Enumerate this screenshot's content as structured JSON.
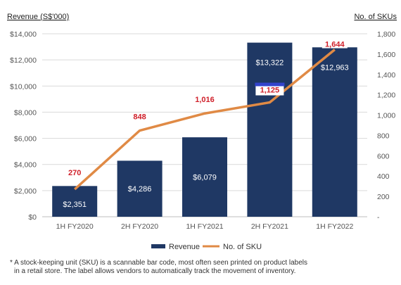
{
  "chart_data": {
    "type": "bar",
    "categories": [
      "1H FY2020",
      "2H FY2020",
      "1H FY2021",
      "2H FY2021",
      "1H FY2022"
    ],
    "series": [
      {
        "name": "Revenue",
        "type": "bar",
        "axis": "left",
        "values": [
          2351,
          4286,
          6079,
          13322,
          12963
        ],
        "labels": [
          "$2,351",
          "$4,286",
          "$6,079",
          "$13,322",
          "$12,963"
        ]
      },
      {
        "name": "No. of SKU",
        "type": "line",
        "axis": "right",
        "values": [
          270,
          848,
          1016,
          1125,
          1644
        ],
        "labels": [
          "270",
          "848",
          "1,016",
          "1,125",
          "1,644"
        ]
      }
    ],
    "ylabel_left": "Revenue (S$'000)",
    "ylabel_right": "No. of SKUs",
    "ylim_left": [
      0,
      14000
    ],
    "ylim_right": [
      0,
      1800
    ],
    "yticks_left": [
      "$0",
      "$2,000",
      "$4,000",
      "$6,000",
      "$8,000",
      "$10,000",
      "$12,000",
      "$14,000"
    ],
    "yticks_right": [
      "-",
      "200",
      "400",
      "600",
      "800",
      "1,000",
      "1,200",
      "1,400",
      "1,600",
      "1,800"
    ],
    "legend": [
      "Revenue",
      "No. of SKU"
    ],
    "legend_position": "bottom",
    "grid": "horizontal",
    "colors": {
      "bar": "#1f3864",
      "line": "#e08a45",
      "line_label": "#d0202a",
      "grid": "#d9d9d9"
    }
  },
  "footnote": {
    "line1": "* A stock-keeping unit (SKU) is a scannable bar code, most often seen printed on product labels",
    "line2": "in a retail store. The label allows vendors to automatically track the movement of inventory."
  }
}
